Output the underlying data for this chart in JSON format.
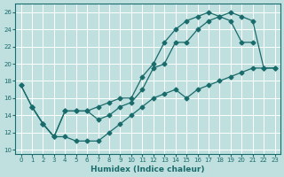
{
  "xlabel": "Humidex (Indice chaleur)",
  "background_color": "#c0e0e0",
  "line_color": "#1a6b6b",
  "xlim": [
    -0.5,
    23.5
  ],
  "ylim": [
    9.5,
    27
  ],
  "xticks": [
    0,
    1,
    2,
    3,
    4,
    5,
    6,
    7,
    8,
    9,
    10,
    11,
    12,
    13,
    14,
    15,
    16,
    17,
    18,
    19,
    20,
    21,
    22,
    23
  ],
  "yticks": [
    10,
    12,
    14,
    16,
    18,
    20,
    22,
    24,
    26
  ],
  "line1_x": [
    0,
    1,
    2,
    3,
    4,
    5,
    6,
    7,
    8,
    9,
    10,
    11,
    12,
    13,
    14,
    15,
    16,
    17,
    18,
    19,
    20,
    21
  ],
  "line1_y": [
    17.5,
    15,
    13,
    11.5,
    14.5,
    14.5,
    14.5,
    15,
    15.5,
    16,
    16,
    18.5,
    20,
    22.5,
    24,
    25,
    25.5,
    26,
    25.5,
    25,
    22.5,
    22.5
  ],
  "line2_x": [
    0,
    1,
    2,
    3,
    4,
    5,
    6,
    7,
    8,
    9,
    10,
    11,
    12,
    13,
    14,
    15,
    16,
    17,
    18,
    19,
    20,
    21,
    22,
    23
  ],
  "line2_y": [
    17.5,
    15,
    13,
    11.5,
    14.5,
    14.5,
    14.5,
    13.5,
    14,
    15,
    15.5,
    17,
    19.5,
    20,
    22.5,
    22.5,
    24,
    25,
    25.5,
    26,
    25.5,
    25,
    19.5,
    19.5
  ],
  "line3_x": [
    1,
    2,
    3,
    4,
    5,
    6,
    7,
    8,
    9,
    10,
    11,
    12,
    13,
    14,
    15,
    16,
    17,
    18,
    19,
    20,
    21,
    22,
    23
  ],
  "line3_y": [
    15,
    13,
    11.5,
    11.5,
    11,
    11,
    11,
    12,
    13,
    14,
    15,
    16,
    16.5,
    17,
    16,
    17,
    17.5,
    18,
    18.5,
    19,
    19.5,
    19.5,
    19.5
  ]
}
